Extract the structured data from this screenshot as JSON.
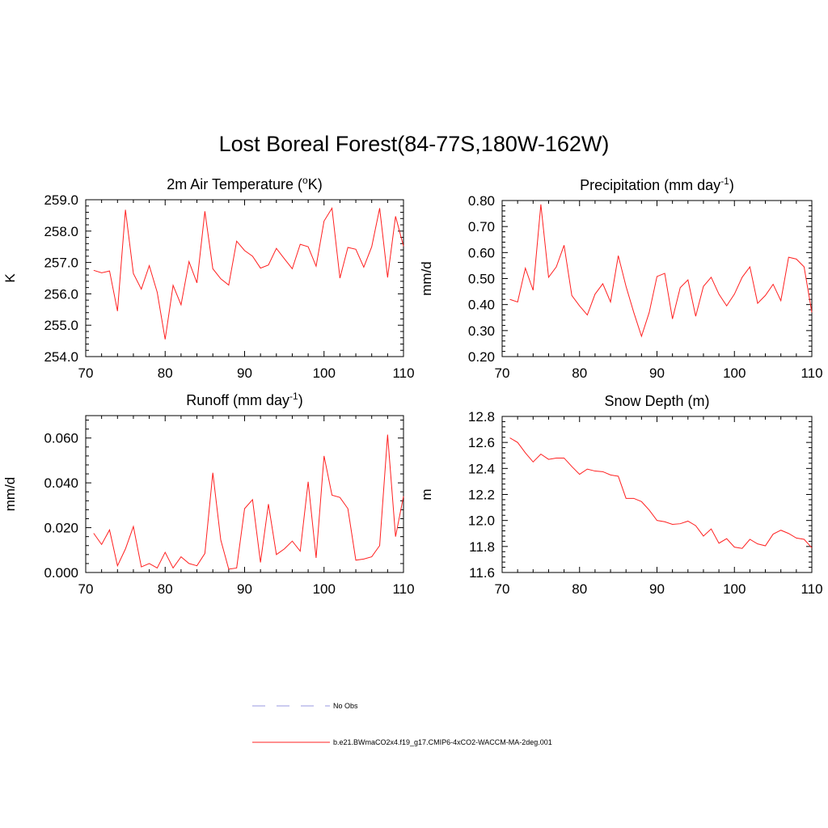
{
  "title": "Lost Boreal Forest(84-77S,180W-162W)",
  "legend": {
    "items": [
      {
        "label": "No Obs",
        "color": "#9a9ae0",
        "dash": true
      },
      {
        "label": "b.e21.BWmaCO2x4.f19_g17.CMIP6-4xCO2-WACCM-MA-2deg.001",
        "color": "#ff2020",
        "dash": false
      }
    ]
  },
  "chart_data": [
    {
      "type": "line",
      "title_main": "2m Air Temperature (",
      "title_sup": "o",
      "title_tail": "K)",
      "ylabel": "K",
      "xlim": [
        70,
        110
      ],
      "ylim": [
        254.0,
        259.0
      ],
      "xticks": [
        70,
        80,
        90,
        100,
        110
      ],
      "yticks": [
        "254.0",
        "255.0",
        "256.0",
        "257.0",
        "258.0",
        "259.0"
      ],
      "x": [
        71,
        72,
        73,
        74,
        75,
        76,
        77,
        78,
        79,
        80,
        81,
        82,
        83,
        84,
        85,
        86,
        87,
        88,
        89,
        90,
        91,
        92,
        93,
        94,
        95,
        96,
        97,
        98,
        99,
        100,
        101,
        102,
        103,
        104,
        105,
        106,
        107,
        108,
        109,
        110
      ],
      "series": [
        {
          "name": "b.e21.BWmaCO2x4.f19_g17.CMIP6-4xCO2-WACCM-MA-2deg.001",
          "color": "#ff2020",
          "values": [
            256.75,
            256.67,
            256.73,
            255.45,
            258.68,
            256.65,
            256.15,
            256.9,
            256.05,
            254.55,
            256.27,
            255.65,
            257.03,
            256.35,
            258.63,
            256.8,
            256.48,
            256.28,
            257.68,
            257.38,
            257.2,
            256.82,
            256.92,
            257.45,
            257.12,
            256.8,
            257.58,
            257.5,
            256.88,
            258.32,
            258.73,
            256.5,
            257.48,
            257.42,
            256.85,
            257.5,
            258.73,
            256.52,
            258.47,
            257.52
          ]
        }
      ]
    },
    {
      "type": "line",
      "title_main": "Precipitation (mm day",
      "title_sup": "-1",
      "title_tail": ")",
      "ylabel": "mm/d",
      "xlim": [
        70,
        110
      ],
      "ylim": [
        0.2,
        0.8
      ],
      "xticks": [
        70,
        80,
        90,
        100,
        110
      ],
      "yticks": [
        "0.20",
        "0.30",
        "0.40",
        "0.50",
        "0.60",
        "0.70",
        "0.80"
      ],
      "x": [
        71,
        72,
        73,
        74,
        75,
        76,
        77,
        78,
        79,
        80,
        81,
        82,
        83,
        84,
        85,
        86,
        87,
        88,
        89,
        90,
        91,
        92,
        93,
        94,
        95,
        96,
        97,
        98,
        99,
        100,
        101,
        102,
        103,
        104,
        105,
        106,
        107,
        108,
        109,
        110
      ],
      "series": [
        {
          "name": "b.e21.BWmaCO2x4.f19_g17.CMIP6-4xCO2-WACCM-MA-2deg.001",
          "color": "#ff2020",
          "values": [
            0.42,
            0.41,
            0.54,
            0.455,
            0.785,
            0.505,
            0.545,
            0.628,
            0.435,
            0.395,
            0.36,
            0.44,
            0.48,
            0.41,
            0.588,
            0.47,
            0.37,
            0.278,
            0.37,
            0.508,
            0.52,
            0.345,
            0.465,
            0.495,
            0.355,
            0.47,
            0.505,
            0.44,
            0.395,
            0.44,
            0.505,
            0.545,
            0.405,
            0.435,
            0.478,
            0.415,
            0.582,
            0.575,
            0.545,
            0.37
          ]
        }
      ]
    },
    {
      "type": "line",
      "title_main": "Runoff (mm day",
      "title_sup": "-1",
      "title_tail": ")",
      "ylabel": "mm/d",
      "xlim": [
        70,
        110
      ],
      "ylim": [
        0.0,
        0.07
      ],
      "xticks": [
        70,
        80,
        90,
        100,
        110
      ],
      "yticks": [
        "0.000",
        "0.020",
        "0.040",
        "0.060"
      ],
      "ytick_values": [
        0.0,
        0.02,
        0.04,
        0.06
      ],
      "x": [
        71,
        72,
        73,
        74,
        75,
        76,
        77,
        78,
        79,
        80,
        81,
        82,
        83,
        84,
        85,
        86,
        87,
        88,
        89,
        90,
        91,
        92,
        93,
        94,
        95,
        96,
        97,
        98,
        99,
        100,
        101,
        102,
        103,
        104,
        105,
        106,
        107,
        108,
        109,
        110
      ],
      "series": [
        {
          "name": "b.e21.BWmaCO2x4.f19_g17.CMIP6-4xCO2-WACCM-MA-2deg.001",
          "color": "#ff2020",
          "values": [
            0.0175,
            0.0125,
            0.019,
            0.003,
            0.0105,
            0.0205,
            0.0025,
            0.004,
            0.002,
            0.009,
            0.002,
            0.007,
            0.004,
            0.003,
            0.0085,
            0.0445,
            0.0145,
            0.0015,
            0.002,
            0.0285,
            0.0325,
            0.0045,
            0.0305,
            0.008,
            0.0105,
            0.014,
            0.0095,
            0.0405,
            0.0065,
            0.052,
            0.0345,
            0.0335,
            0.0285,
            0.0055,
            0.006,
            0.007,
            0.012,
            0.0615,
            0.016,
            0.034
          ]
        }
      ]
    },
    {
      "type": "line",
      "title_main": "Snow Depth (m)",
      "title_sup": "",
      "title_tail": "",
      "ylabel": "m",
      "xlim": [
        70,
        110
      ],
      "ylim": [
        11.6,
        12.8
      ],
      "xticks": [
        70,
        80,
        90,
        100,
        110
      ],
      "yticks": [
        "11.6",
        "11.8",
        "12.0",
        "12.2",
        "12.4",
        "12.6",
        "12.8"
      ],
      "x": [
        71,
        72,
        73,
        74,
        75,
        76,
        77,
        78,
        79,
        80,
        81,
        82,
        83,
        84,
        85,
        86,
        87,
        88,
        89,
        90,
        91,
        92,
        93,
        94,
        95,
        96,
        97,
        98,
        99,
        100,
        101,
        102,
        103,
        104,
        105,
        106,
        107,
        108,
        109,
        110
      ],
      "series": [
        {
          "name": "b.e21.BWmaCO2x4.f19_g17.CMIP6-4xCO2-WACCM-MA-2deg.001",
          "color": "#ff2020",
          "values": [
            12.635,
            12.6,
            12.52,
            12.45,
            12.51,
            12.47,
            12.48,
            12.48,
            12.415,
            12.355,
            12.395,
            12.38,
            12.375,
            12.35,
            12.34,
            12.17,
            12.17,
            12.145,
            12.08,
            12.0,
            11.99,
            11.97,
            11.975,
            11.995,
            11.96,
            11.88,
            11.935,
            11.825,
            11.86,
            11.795,
            11.785,
            11.855,
            11.82,
            11.805,
            11.895,
            11.925,
            11.9,
            11.865,
            11.855,
            11.79
          ]
        }
      ]
    }
  ]
}
